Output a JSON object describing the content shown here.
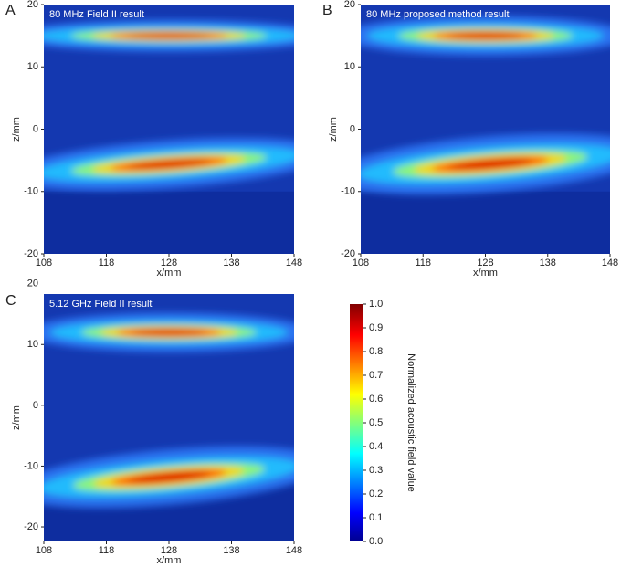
{
  "chart_data": [
    {
      "type": "heatmap",
      "panel_label": "A",
      "title": "80 MHz Field II result",
      "xlabel": "x/mm",
      "ylabel": "z/mm",
      "xlim": [
        108,
        148
      ],
      "ylim": [
        -20,
        20
      ],
      "xticks": [
        108,
        118,
        128,
        138,
        148
      ],
      "yticks": [
        -20,
        -10,
        0,
        10,
        20
      ]
    },
    {
      "type": "heatmap",
      "panel_label": "B",
      "title": "80 MHz proposed method result",
      "xlabel": "x/mm",
      "ylabel": "z/mm",
      "xlim": [
        108,
        148
      ],
      "ylim": [
        -20,
        20
      ],
      "xticks": [
        108,
        118,
        128,
        138,
        148
      ],
      "yticks": [
        -20,
        -10,
        0,
        10,
        20
      ]
    },
    {
      "type": "heatmap",
      "panel_label": "C",
      "title": "5.12 GHz Field II result",
      "xlabel": "x/mm",
      "ylabel": "z/mm",
      "xlim": [
        108,
        148
      ],
      "ylim": [
        -22.4,
        18.3
      ],
      "xticks": [
        108,
        118,
        128,
        138,
        148
      ],
      "yticks": [
        -20,
        -10,
        0,
        10,
        20
      ]
    },
    {
      "type": "colorbar",
      "label": "Normalized acoustic field value",
      "ylim": [
        0,
        1
      ],
      "yticks": [
        {
          "value": 0,
          "label": "0.0"
        },
        {
          "value": 0.1,
          "label": "0.1"
        },
        {
          "value": 0.2,
          "label": "0.2"
        },
        {
          "value": 0.3,
          "label": "0.3"
        },
        {
          "value": 0.4,
          "label": "0.4"
        },
        {
          "value": 0.5,
          "label": "0.5"
        },
        {
          "value": 0.6,
          "label": "0.6"
        },
        {
          "value": 0.7,
          "label": "0.7"
        },
        {
          "value": 0.8,
          "label": "0.8"
        },
        {
          "value": 0.9,
          "label": "0.9"
        },
        {
          "value": 1,
          "label": "1.0"
        }
      ]
    }
  ]
}
